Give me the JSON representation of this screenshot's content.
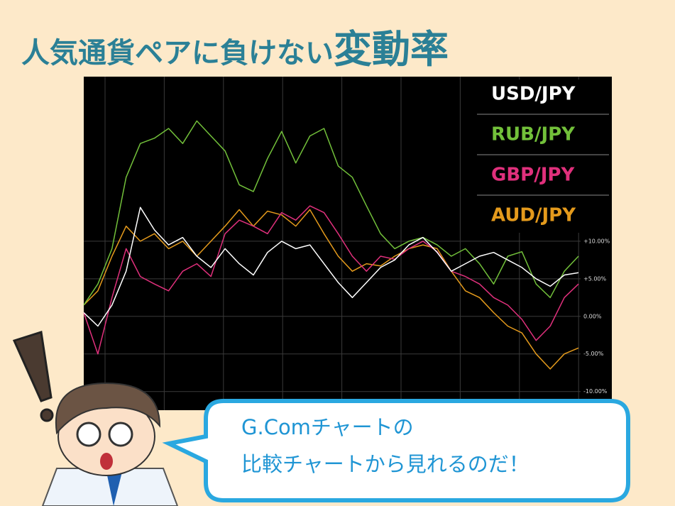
{
  "slide": {
    "title_main": "人気通貨ペアに負けない",
    "title_emphasis": "変動率",
    "speech": [
      "G.Comチャートの",
      "比較チャートから見れるのだ！"
    ]
  },
  "chart_data": {
    "type": "line",
    "categories": [
      null,
      null,
      null,
      null,
      null,
      null,
      null,
      null,
      null,
      null,
      null,
      null,
      null,
      null,
      null,
      null,
      null,
      null,
      null,
      null,
      null,
      null,
      null,
      null,
      null,
      null,
      null,
      null,
      null,
      null,
      null,
      null,
      null,
      null,
      null,
      null
    ],
    "ylim": [
      -12.2,
      31.7
    ],
    "yticks": [
      {
        "value": 10,
        "label": "+10.00%"
      },
      {
        "value": 5,
        "label": "+5.00%"
      },
      {
        "value": 0,
        "label": "0.00%"
      },
      {
        "value": -5,
        "label": "-5.00%"
      },
      {
        "value": -10,
        "label": "-10.00%"
      }
    ],
    "grid": true,
    "legend": "top-right",
    "series": [
      {
        "name": "USD/JPY",
        "color": "#ffffff",
        "values": [
          0.5,
          -1.3,
          1.5,
          6,
          14.5,
          11.5,
          9.5,
          10.5,
          8,
          6.5,
          9,
          7,
          5.5,
          8.5,
          10,
          9,
          9.5,
          7,
          4.5,
          2.5,
          4.5,
          6.5,
          7.5,
          9.5,
          10.5,
          8.5,
          6,
          7,
          8,
          8.5,
          7.5,
          6.5,
          5,
          4,
          5.5,
          5.8
        ]
      },
      {
        "name": "RUB/JPY",
        "color": "#72c03a",
        "values": [
          1.5,
          4.3,
          9,
          18.5,
          23,
          23.7,
          25,
          23,
          26,
          24,
          22,
          17.5,
          16.6,
          21,
          24.6,
          20.4,
          24,
          25,
          20,
          18.5,
          14.7,
          11,
          9,
          10,
          10.5,
          9.5,
          8,
          9,
          7,
          4.3,
          8,
          8.6,
          4.3,
          2.5,
          6,
          8
        ]
      },
      {
        "name": "GBP/JPY",
        "color": "#e0307c",
        "values": [
          0.5,
          -5,
          2.5,
          9,
          5.3,
          4.3,
          3.4,
          6,
          7,
          5.3,
          11,
          12.8,
          12,
          11,
          13.8,
          12.8,
          14.7,
          13.8,
          11,
          8,
          6,
          8,
          7.6,
          9,
          10,
          8.6,
          6,
          5.3,
          4.3,
          2.5,
          1.5,
          -0.4,
          -3.2,
          -1.3,
          2.5,
          4.3
        ]
      },
      {
        "name": "AUD/JPY",
        "color": "#e49a1c",
        "values": [
          1.5,
          3.4,
          8,
          12,
          10,
          11,
          9,
          10,
          8,
          10,
          12,
          14.2,
          12,
          14,
          13.5,
          12,
          14.2,
          11,
          8,
          6,
          7,
          6.7,
          8,
          9,
          9.5,
          9,
          6,
          3.4,
          2.5,
          0.5,
          -1.3,
          -2.2,
          -5,
          -7,
          -5,
          -4.2
        ]
      }
    ]
  }
}
